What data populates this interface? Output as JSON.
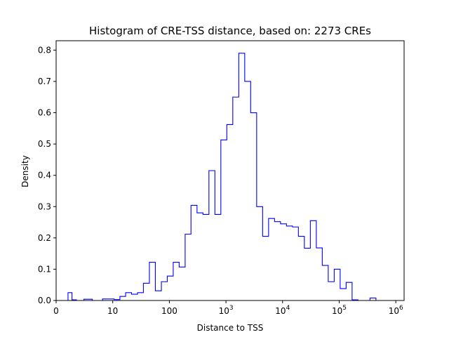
{
  "chart_data": {
    "type": "histogram",
    "title": "Histogram of CRE-TSS distance, based on: 2273 CREs",
    "xlabel": "Distance to TSS",
    "ylabel": "Density",
    "x_scale": "symlog",
    "xlim": [
      0,
      1400000
    ],
    "ylim": [
      0,
      0.83
    ],
    "grid": false,
    "legend": "none",
    "line_color": "#0000ff",
    "x_ticks": [
      {
        "value": 0,
        "base": "0",
        "exp": ""
      },
      {
        "value": 10,
        "base": "10",
        "exp": ""
      },
      {
        "value": 100,
        "base": "100",
        "exp": ""
      },
      {
        "value": 1000,
        "base": "10",
        "exp": "3"
      },
      {
        "value": 10000,
        "base": "10",
        "exp": "4"
      },
      {
        "value": 100000,
        "base": "10",
        "exp": "5"
      },
      {
        "value": 1000000,
        "base": "10",
        "exp": "6"
      }
    ],
    "y_ticks": [
      {
        "value": 0.0,
        "label": "0.0"
      },
      {
        "value": 0.1,
        "label": "0.1"
      },
      {
        "value": 0.2,
        "label": "0.2"
      },
      {
        "value": 0.3,
        "label": "0.3"
      },
      {
        "value": 0.4,
        "label": "0.4"
      },
      {
        "value": 0.5,
        "label": "0.5"
      },
      {
        "value": 0.6,
        "label": "0.6"
      },
      {
        "value": 0.7,
        "label": "0.7"
      },
      {
        "value": 0.8,
        "label": "0.8"
      }
    ],
    "bin_edges": [
      2.1,
      2.8,
      3.6,
      4.9,
      6.4,
      8.2,
      10.6,
      13.4,
      16.9,
      21.5,
      27.4,
      34.8,
      44.4,
      56.6,
      72.3,
      91.8,
      117,
      149,
      190,
      241,
      308,
      392,
      500,
      637,
      812,
      1035,
      1320,
      1682,
      2143,
      2732,
      3482,
      4438,
      5657,
      7210,
      9190,
      11713,
      14928,
      19027,
      24251,
      30910,
      39398,
      50216,
      64005,
      81580,
      103981,
      132532,
      168923,
      215307,
      274428,
      349780,
      445824,
      568240,
      724268
    ],
    "densities": [
      0.025,
      0.002,
      0.0,
      0.004,
      0.0,
      0.005,
      0.003,
      0.013,
      0.025,
      0.02,
      0.025,
      0.055,
      0.122,
      0.031,
      0.06,
      0.078,
      0.122,
      0.107,
      0.212,
      0.304,
      0.28,
      0.275,
      0.415,
      0.275,
      0.513,
      0.562,
      0.65,
      0.79,
      0.7,
      0.6,
      0.3,
      0.205,
      0.262,
      0.252,
      0.245,
      0.238,
      0.235,
      0.205,
      0.167,
      0.255,
      0.168,
      0.112,
      0.06,
      0.1,
      0.038,
      0.058,
      0.002,
      0.0,
      0.0,
      0.008,
      0.0,
      0.0
    ]
  }
}
